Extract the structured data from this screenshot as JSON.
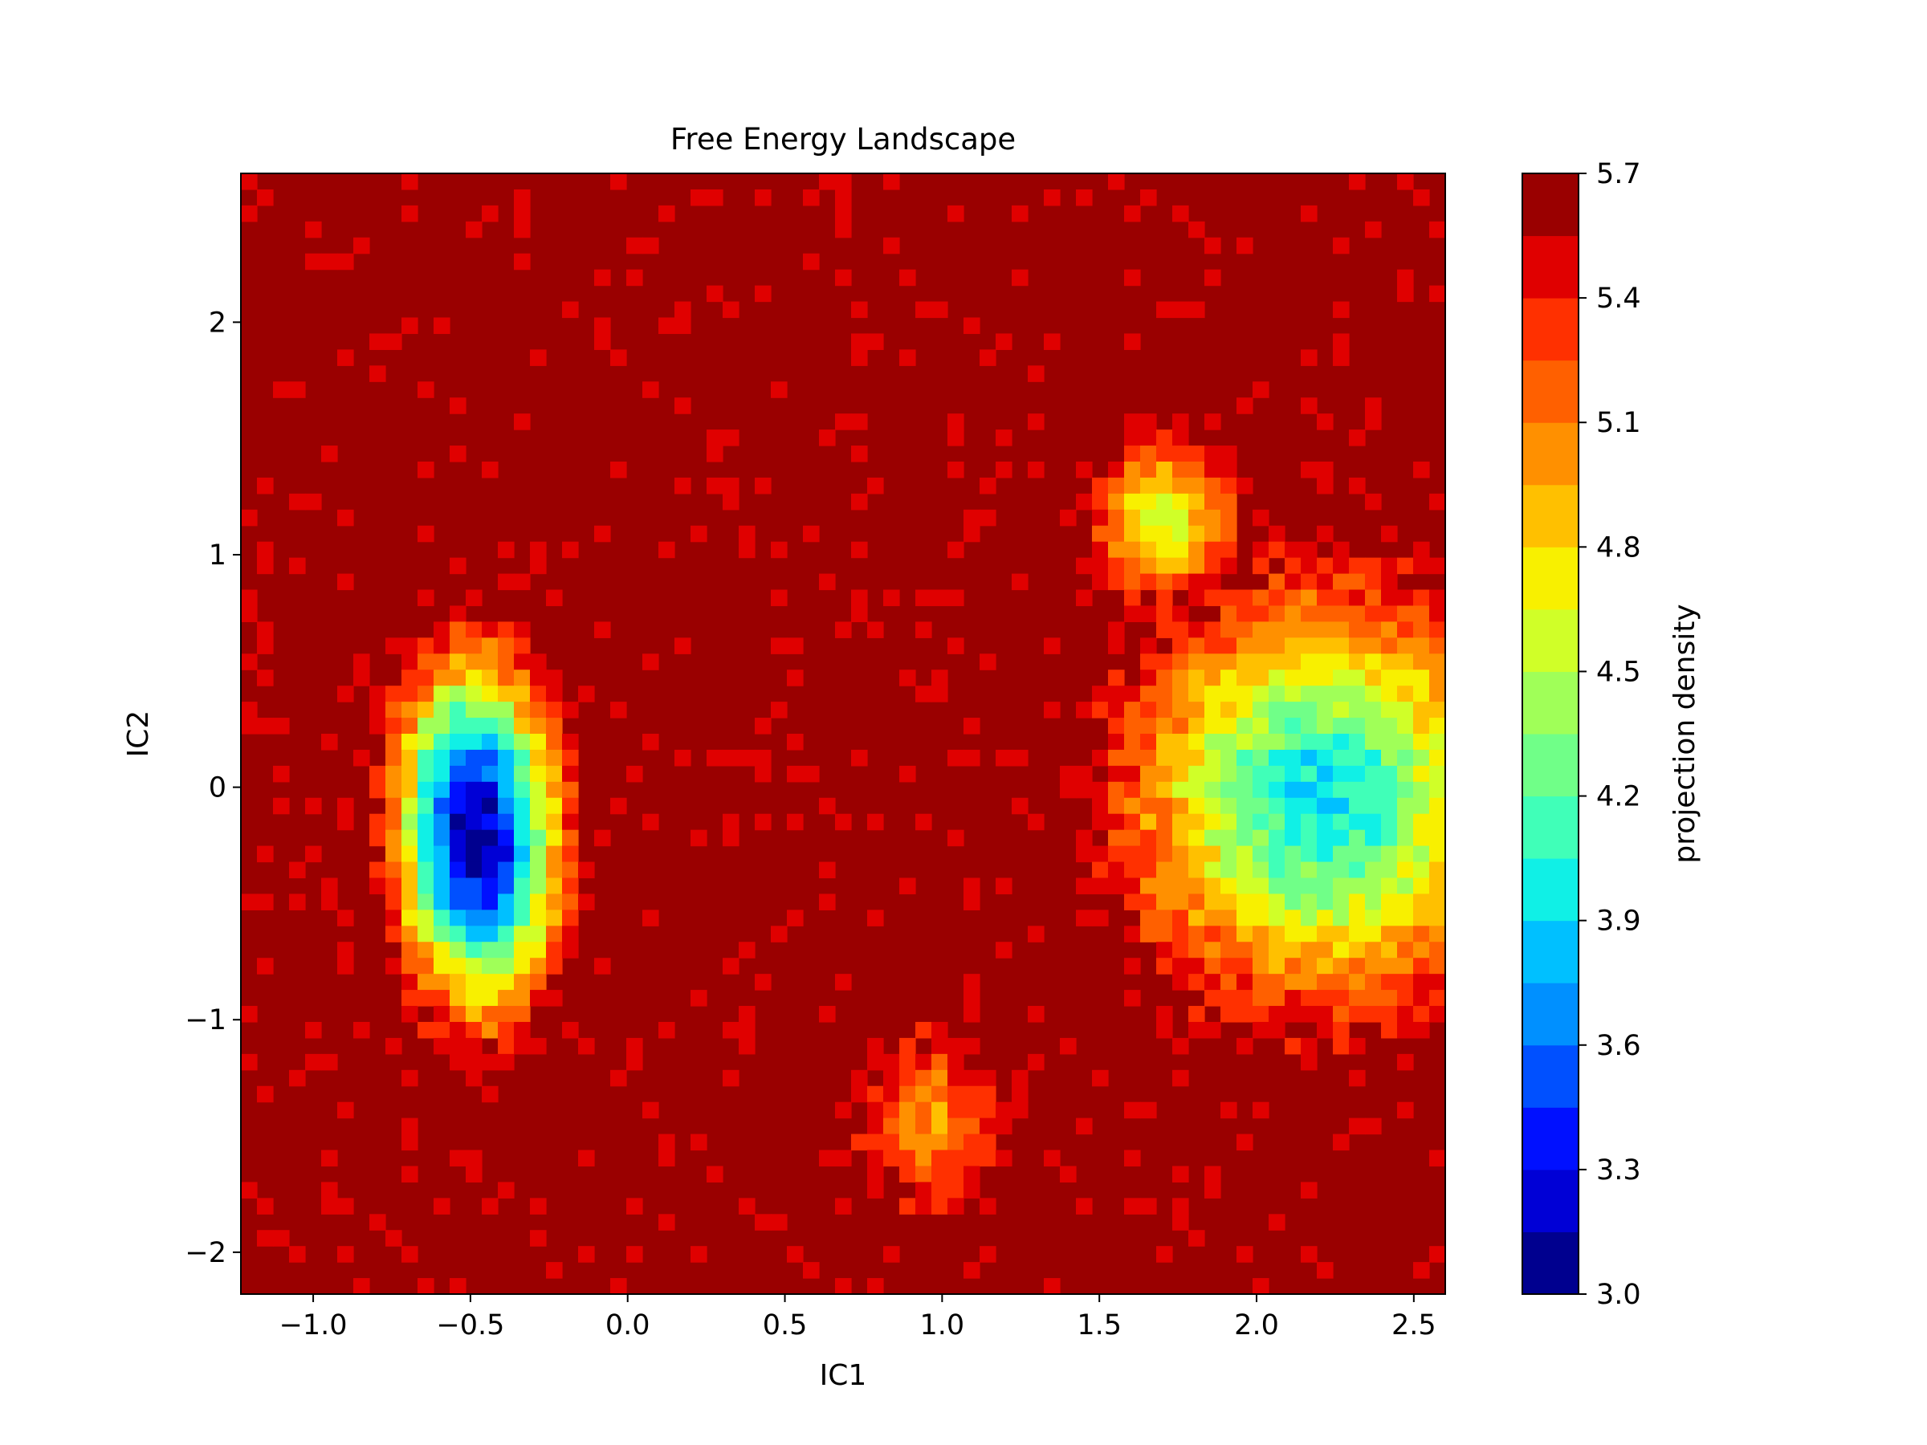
{
  "chart_data": {
    "type": "heatmap",
    "subtype": "filled-contour",
    "title": "Free Energy Landscape",
    "xlabel": "IC1",
    "ylabel": "IC2",
    "xlim": [
      -1.23,
      2.6
    ],
    "ylim": [
      -2.18,
      2.64
    ],
    "xticks": [
      -1.0,
      -0.5,
      0.0,
      0.5,
      1.0,
      1.5,
      2.0,
      2.5
    ],
    "xtick_labels": [
      "−1.0",
      "−0.5",
      "0.0",
      "0.5",
      "1.0",
      "1.5",
      "2.0",
      "2.5"
    ],
    "yticks": [
      -2,
      -1,
      0,
      1,
      2
    ],
    "ytick_labels": [
      "−2",
      "−1",
      "0",
      "1",
      "2"
    ],
    "colorbar": {
      "label": "projection density",
      "min": 3.0,
      "max": 5.7,
      "ticks": [
        3.0,
        3.3,
        3.6,
        3.9,
        4.2,
        4.5,
        4.8,
        5.1,
        5.4,
        5.7
      ],
      "tick_labels": [
        "3.0",
        "3.3",
        "3.6",
        "3.9",
        "4.2",
        "4.5",
        "4.8",
        "5.1",
        "5.4",
        "5.7"
      ],
      "levels": [
        3.0,
        3.15,
        3.3,
        3.45,
        3.6,
        3.75,
        3.9,
        4.05,
        4.2,
        4.35,
        4.5,
        4.65,
        4.8,
        4.95,
        5.1,
        5.25,
        5.4,
        5.55,
        5.7
      ],
      "colormap": "jet",
      "colors": [
        "#00008f",
        "#0000d6",
        "#0010ff",
        "#0050ff",
        "#0090ff",
        "#00c0ff",
        "#10f0e6",
        "#40ffb8",
        "#70ff88",
        "#a0ff58",
        "#d0ff28",
        "#f8f000",
        "#ffc000",
        "#ff9000",
        "#ff6000",
        "#ff3000",
        "#e00000",
        "#9a0000"
      ]
    },
    "background_value": 5.7,
    "basins": [
      {
        "name": "left basin",
        "center": [
          -0.48,
          -0.2
        ],
        "sigma": [
          0.24,
          0.68
        ],
        "min_value": 3.05,
        "tilt": 0.08
      },
      {
        "name": "right basin",
        "center": [
          2.2,
          -0.05
        ],
        "sigma": [
          0.55,
          0.78
        ],
        "min_value": 3.95,
        "tilt": 0.0
      },
      {
        "name": "small upper-right lobe",
        "center": [
          1.7,
          1.15
        ],
        "sigma": [
          0.2,
          0.3
        ],
        "min_value": 4.5,
        "tilt": 0.0
      },
      {
        "name": "lower scattered patch",
        "center": [
          0.95,
          -1.45
        ],
        "sigma": [
          0.2,
          0.35
        ],
        "min_value": 5.05,
        "tilt": 0.0
      }
    ]
  }
}
